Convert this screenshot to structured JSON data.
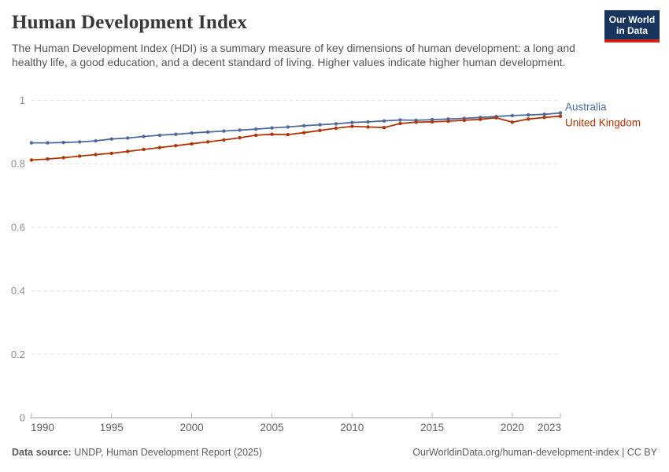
{
  "header": {
    "title": "Human Development Index",
    "subtitle": "The Human Development Index (HDI) is a summary measure of key dimensions of human development: a long and healthy life, a good education, and a decent standard of living. Higher values indicate higher human development.",
    "logo": {
      "line1": "Our World",
      "line2": "in Data",
      "bg_color": "#18355E",
      "stripe_color": "#CF2318",
      "text_color": "#FFFFFF"
    }
  },
  "chart_data": {
    "type": "line",
    "title": "Human Development Index",
    "xlabel": "",
    "ylabel": "",
    "xlim": [
      1990,
      2023
    ],
    "ylim": [
      0,
      1
    ],
    "x_ticks": [
      1990,
      1995,
      2000,
      2005,
      2010,
      2015,
      2020,
      2023
    ],
    "y_ticks": [
      0,
      0.2,
      0.4,
      0.6,
      0.8,
      1
    ],
    "grid": "horizontal-dashed",
    "legend_position": "right-of-line-ends",
    "x": [
      1990,
      1991,
      1992,
      1993,
      1994,
      1995,
      1996,
      1997,
      1998,
      1999,
      2000,
      2001,
      2002,
      2003,
      2004,
      2005,
      2006,
      2007,
      2008,
      2009,
      2010,
      2011,
      2012,
      2013,
      2014,
      2015,
      2016,
      2017,
      2018,
      2019,
      2020,
      2021,
      2022,
      2023
    ],
    "series": [
      {
        "name": "Australia",
        "color": "#4C6A9C",
        "values": [
          0.866,
          0.866,
          0.867,
          0.869,
          0.872,
          0.878,
          0.881,
          0.886,
          0.89,
          0.893,
          0.897,
          0.9,
          0.903,
          0.906,
          0.909,
          0.913,
          0.916,
          0.92,
          0.923,
          0.926,
          0.93,
          0.932,
          0.935,
          0.938,
          0.937,
          0.939,
          0.941,
          0.943,
          0.946,
          0.949,
          0.952,
          0.954,
          0.956,
          0.96
        ]
      },
      {
        "name": "United Kingdom",
        "color": "#B13507",
        "values": [
          0.812,
          0.815,
          0.819,
          0.824,
          0.829,
          0.833,
          0.839,
          0.845,
          0.851,
          0.857,
          0.863,
          0.869,
          0.875,
          0.882,
          0.89,
          0.893,
          0.892,
          0.898,
          0.905,
          0.912,
          0.918,
          0.916,
          0.914,
          0.927,
          0.931,
          0.932,
          0.934,
          0.937,
          0.94,
          0.945,
          0.931,
          0.941,
          0.946,
          0.95
        ]
      }
    ],
    "axis_colors": {
      "gridline": "#dddddd",
      "baseline": "#a3a3a3",
      "tick": "#b0b0b0",
      "y_label": "#8f8f8f",
      "x_label": "#5f5f5f"
    }
  },
  "footer": {
    "source_label": "Data source:",
    "source_text": " UNDP, Human Development Report (2025)",
    "credit": "OurWorldinData.org/human-development-index | CC BY"
  }
}
